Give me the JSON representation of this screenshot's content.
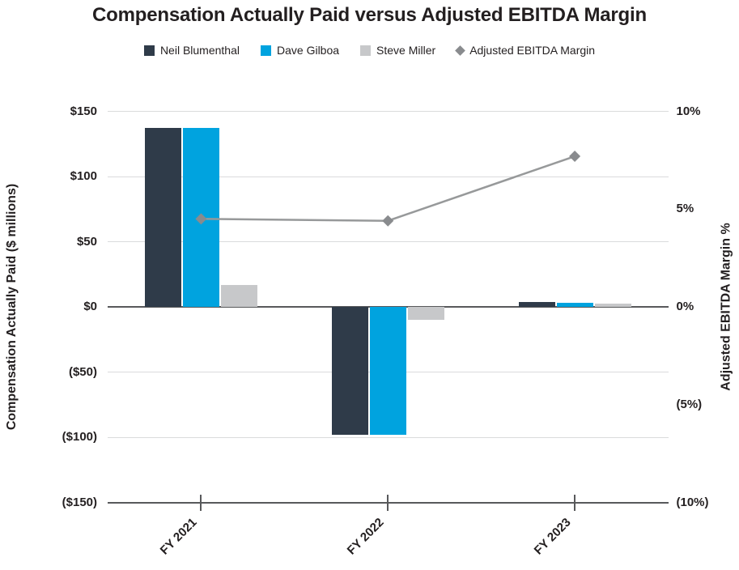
{
  "title": "Compensation Actually Paid versus Adjusted EBITDA Margin",
  "colors": {
    "neil_blumenthal": "#2f3b49",
    "dave_gilboa": "#00a3df",
    "steve_miller": "#c7c8ca",
    "ebitda_line": "#97999a",
    "ebitda_marker": "#898b8e",
    "gridline": "#dadbdc",
    "axis_line": "#58595b",
    "text": "#231f20"
  },
  "legend": [
    {
      "label": "Neil Blumenthal",
      "swatch": "square",
      "color_key": "neil_blumenthal"
    },
    {
      "label": "Dave Gilboa",
      "swatch": "square",
      "color_key": "dave_gilboa"
    },
    {
      "label": "Steve Miller",
      "swatch": "square",
      "color_key": "steve_miller"
    },
    {
      "label": "Adjusted EBITDA Margin",
      "swatch": "diamond",
      "color_key": "ebitda_marker"
    }
  ],
  "left_axis": {
    "title": "Compensation Actually Paid ($ millions)",
    "tick_labels": [
      "$150",
      "$100",
      "$50",
      "$0",
      "($50)",
      "($100)",
      "($150)"
    ],
    "tick_values": [
      150,
      100,
      50,
      0,
      -50,
      -100,
      -150
    ],
    "min": -150,
    "max": 150,
    "step": 50
  },
  "right_axis": {
    "title": "Adjusted EBITDA Margin %",
    "tick_labels": [
      "10%",
      "5%",
      "0%",
      "(5%)",
      "(10%)"
    ],
    "tick_values": [
      10,
      5,
      0,
      -5,
      -10
    ],
    "min": -10,
    "max": 10,
    "step": 5
  },
  "chart_data": {
    "type": "bar",
    "subtype": "grouped-bar-with-line",
    "title": "Compensation Actually Paid versus Adjusted EBITDA Margin",
    "xlabel": "",
    "ylabel_left": "Compensation Actually Paid ($ millions)",
    "ylabel_right": "Adjusted EBITDA Margin %",
    "ylim_left": [
      -150,
      150
    ],
    "ylim_right": [
      -10,
      10
    ],
    "grid": true,
    "legend_position": "top",
    "categories": [
      "FY 2021",
      "FY 2022",
      "FY 2023"
    ],
    "series": [
      {
        "name": "Neil Blumenthal",
        "type": "bar",
        "axis": "left",
        "color_key": "neil_blumenthal",
        "values": [
          137,
          -98,
          3.5
        ]
      },
      {
        "name": "Dave Gilboa",
        "type": "bar",
        "axis": "left",
        "color_key": "dave_gilboa",
        "values": [
          137,
          -98,
          3
        ]
      },
      {
        "name": "Steve Miller",
        "type": "bar",
        "axis": "left",
        "color_key": "steve_miller",
        "values": [
          17,
          -10,
          2.5
        ]
      },
      {
        "name": "Adjusted EBITDA Margin",
        "type": "line",
        "axis": "right",
        "color_key": "ebitda_line",
        "marker": "diamond",
        "values": [
          4.5,
          4.4,
          7.7
        ]
      }
    ]
  }
}
